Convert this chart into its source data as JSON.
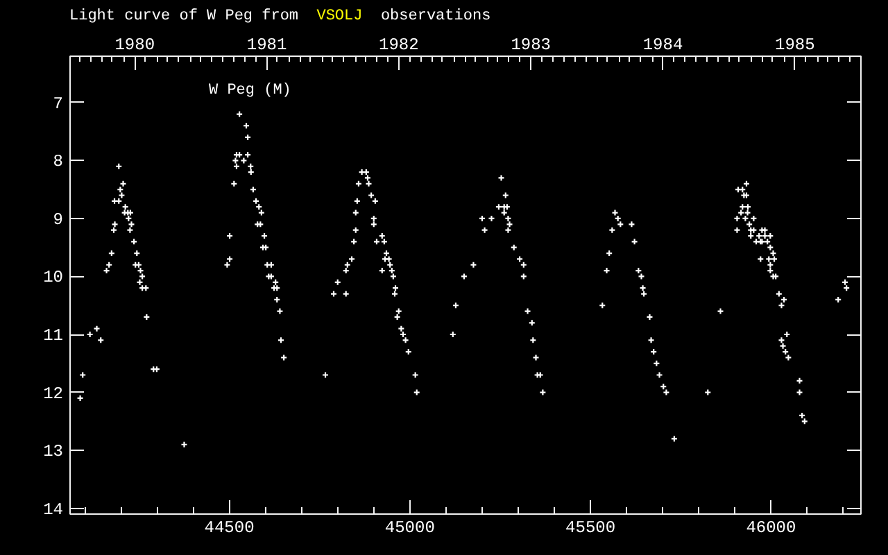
{
  "chart_data": {
    "type": "scatter",
    "title": "Light curve of W Peg from VSOLJ observations",
    "series": [
      {
        "name": "W Peg (M)",
        "color": "#ffffff",
        "x": [
          44087,
          44094,
          44114,
          44133,
          44144,
          44160,
          44167,
          44174,
          44180,
          44182,
          44183,
          44194,
          44194,
          44198,
          44202,
          44206,
          44210,
          44212,
          44219,
          44221,
          44225,
          44226,
          44229,
          44236,
          44240,
          44244,
          44249,
          44252,
          44254,
          44259,
          44259,
          44269,
          44271,
          44290,
          44299,
          44375,
          44494,
          44501,
          44501,
          44513,
          44517,
          44520,
          44520,
          44528,
          44528,
          44540,
          44547,
          44551,
          44551,
          44559,
          44560,
          44566,
          44574,
          44578,
          44582,
          44586,
          44589,
          44593,
          44597,
          44601,
          44605,
          44609,
          44616,
          44616,
          44624,
          44628,
          44632,
          44632,
          44640,
          44643,
          44651,
          44766,
          44789,
          44800,
          44823,
          44823,
          44827,
          44839,
          44845,
          44850,
          44850,
          44854,
          44858,
          44867,
          44879,
          44883,
          44886,
          44893,
          44900,
          44900,
          44904,
          44908,
          44923,
          44923,
          44929,
          44931,
          44935,
          44942,
          44945,
          44950,
          44954,
          44958,
          44960,
          44965,
          44969,
          44976,
          44981,
          44988,
          44996,
          45015,
          45019,
          45119,
          45127,
          45150,
          45176,
          45200,
          45207,
          45226,
          45246,
          45253,
          45261,
          45261,
          45265,
          45269,
          45272,
          45272,
          45276,
          45288,
          45304,
          45315,
          45315,
          45326,
          45338,
          45341,
          45349,
          45353,
          45361,
          45368,
          45533,
          45545,
          45552,
          45560,
          45568,
          45576,
          45583,
          45614,
          45622,
          45633,
          45641,
          45645,
          45648,
          45664,
          45668,
          45675,
          45683,
          45691,
          45702,
          45710,
          45732,
          45825,
          45860,
          45906,
          45906,
          45909,
          45917,
          45921,
          45921,
          45925,
          45929,
          45932,
          45932,
          45935,
          45936,
          45940,
          45944,
          45944,
          45952,
          45952,
          45959,
          45967,
          45971,
          45971,
          45975,
          45975,
          45983,
          45983,
          45990,
          45994,
          45998,
          45998,
          45998,
          45998,
          46006,
          46006,
          46009,
          46013,
          46022,
          46029,
          46029,
          46033,
          46036,
          46040,
          46044,
          46048,
          46079,
          46079,
          46086,
          46093,
          46186,
          46205,
          46209
        ],
        "values": [
          12.1,
          11.7,
          11.0,
          10.9,
          11.1,
          9.9,
          9.8,
          9.6,
          9.2,
          8.7,
          9.1,
          8.7,
          8.1,
          8.5,
          8.6,
          8.4,
          8.9,
          8.8,
          8.9,
          9.0,
          9.2,
          8.9,
          9.1,
          9.4,
          9.8,
          9.6,
          9.8,
          10.1,
          9.9,
          10.0,
          10.2,
          10.2,
          10.7,
          11.6,
          11.6,
          12.9,
          9.8,
          9.3,
          9.7,
          8.4,
          8.0,
          7.9,
          8.1,
          7.2,
          7.9,
          8.0,
          7.4,
          7.6,
          7.9,
          8.1,
          8.2,
          8.5,
          8.7,
          9.1,
          8.8,
          9.1,
          8.9,
          9.5,
          9.3,
          9.5,
          9.8,
          10.0,
          9.8,
          10.0,
          10.2,
          10.1,
          10.2,
          10.4,
          10.6,
          11.1,
          11.4,
          11.7,
          10.3,
          10.1,
          9.9,
          10.3,
          9.8,
          9.7,
          9.4,
          8.9,
          9.2,
          8.7,
          8.4,
          8.2,
          8.2,
          8.3,
          8.4,
          8.6,
          9.0,
          9.1,
          8.7,
          9.4,
          9.3,
          9.9,
          9.4,
          9.7,
          9.6,
          9.7,
          9.8,
          9.9,
          10.0,
          10.3,
          10.2,
          10.7,
          10.6,
          10.9,
          11.0,
          11.1,
          11.3,
          11.7,
          12.0,
          11.0,
          10.5,
          10.0,
          9.8,
          9.0,
          9.2,
          9.0,
          8.8,
          8.3,
          8.8,
          8.9,
          8.6,
          8.8,
          9.0,
          9.2,
          9.1,
          9.5,
          9.7,
          9.8,
          10.0,
          10.6,
          10.8,
          11.1,
          11.4,
          11.7,
          11.7,
          12.0,
          10.5,
          9.9,
          9.6,
          9.2,
          8.9,
          9.0,
          9.1,
          9.1,
          9.4,
          9.9,
          10.0,
          10.2,
          10.3,
          10.7,
          11.1,
          11.3,
          11.5,
          11.7,
          11.9,
          12.0,
          12.8,
          12.0,
          10.6,
          9.0,
          9.2,
          8.5,
          8.9,
          8.5,
          8.8,
          8.6,
          9.0,
          8.4,
          8.6,
          8.9,
          8.8,
          9.1,
          9.2,
          9.3,
          9.0,
          9.2,
          9.4,
          9.3,
          9.4,
          9.7,
          9.2,
          9.4,
          9.2,
          9.3,
          9.4,
          9.7,
          9.3,
          9.5,
          9.8,
          9.9,
          9.6,
          10.0,
          9.7,
          10.0,
          10.3,
          10.5,
          11.1,
          11.2,
          10.4,
          11.3,
          11.0,
          11.4,
          11.8,
          12.0,
          12.4,
          12.5,
          10.4,
          10.1,
          10.2
        ]
      }
    ],
    "marker": "cross",
    "legend": "top left",
    "xlim": [
      44059,
      46249
    ],
    "xticks": [
      {
        "value": 44100,
        "label": null
      },
      {
        "value": 44200,
        "label": null
      },
      {
        "value": 44300,
        "label": null
      },
      {
        "value": 44400,
        "label": null
      },
      44500,
      {
        "value": 44600,
        "label": null
      },
      {
        "value": 44700,
        "label": null
      },
      {
        "value": 44800,
        "label": null
      },
      {
        "value": 44900,
        "label": null
      },
      45000,
      {
        "value": 45100,
        "label": null
      },
      {
        "value": 45200,
        "label": null
      },
      {
        "value": 45300,
        "label": null
      },
      {
        "value": 45400,
        "label": null
      },
      45500,
      {
        "value": 45600,
        "label": null
      },
      {
        "value": 45700,
        "label": null
      },
      {
        "value": 45800,
        "label": null
      },
      {
        "value": 45900,
        "label": null
      },
      46000,
      {
        "value": 46100,
        "label": null
      },
      {
        "value": 46200,
        "label": null
      }
    ],
    "ylim": [
      14.1,
      6.2
    ],
    "yticks": [
      7,
      8,
      9,
      10,
      11,
      12,
      13,
      14
    ],
    "x2lim": [
      1979.51,
      1985.5
    ],
    "x2ticks": [
      {
        "value": 1979.58,
        "label": null
      },
      {
        "value": 1979.67,
        "label": null
      },
      {
        "value": 1979.75,
        "label": null
      },
      {
        "value": 1979.83,
        "label": null
      },
      {
        "value": 1979.92,
        "label": null
      },
      1980,
      {
        "value": 1980.08,
        "label": null
      },
      {
        "value": 1980.17,
        "label": null
      },
      {
        "value": 1980.25,
        "label": null
      },
      {
        "value": 1980.33,
        "label": null
      },
      {
        "value": 1980.42,
        "label": null
      },
      {
        "value": 1980.5,
        "label": null
      },
      {
        "value": 1980.58,
        "label": null
      },
      {
        "value": 1980.67,
        "label": null
      },
      {
        "value": 1980.75,
        "label": null
      },
      {
        "value": 1980.83,
        "label": null
      },
      {
        "value": 1980.92,
        "label": null
      },
      1981,
      {
        "value": 1981.08,
        "label": null
      },
      {
        "value": 1981.17,
        "label": null
      },
      {
        "value": 1981.25,
        "label": null
      },
      {
        "value": 1981.33,
        "label": null
      },
      {
        "value": 1981.42,
        "label": null
      },
      {
        "value": 1981.5,
        "label": null
      },
      {
        "value": 1981.58,
        "label": null
      },
      {
        "value": 1981.67,
        "label": null
      },
      {
        "value": 1981.75,
        "label": null
      },
      {
        "value": 1981.83,
        "label": null
      },
      {
        "value": 1981.92,
        "label": null
      },
      1982,
      {
        "value": 1982.08,
        "label": null
      },
      {
        "value": 1982.17,
        "label": null
      },
      {
        "value": 1982.25,
        "label": null
      },
      {
        "value": 1982.33,
        "label": null
      },
      {
        "value": 1982.42,
        "label": null
      },
      {
        "value": 1982.5,
        "label": null
      },
      {
        "value": 1982.58,
        "label": null
      },
      {
        "value": 1982.67,
        "label": null
      },
      {
        "value": 1982.75,
        "label": null
      },
      {
        "value": 1982.83,
        "label": null
      },
      {
        "value": 1982.92,
        "label": null
      },
      1983,
      {
        "value": 1983.08,
        "label": null
      },
      {
        "value": 1983.17,
        "label": null
      },
      {
        "value": 1983.25,
        "label": null
      },
      {
        "value": 1983.33,
        "label": null
      },
      {
        "value": 1983.42,
        "label": null
      },
      {
        "value": 1983.5,
        "label": null
      },
      {
        "value": 1983.58,
        "label": null
      },
      {
        "value": 1983.67,
        "label": null
      },
      {
        "value": 1983.75,
        "label": null
      },
      {
        "value": 1983.83,
        "label": null
      },
      {
        "value": 1983.92,
        "label": null
      },
      1984,
      {
        "value": 1984.08,
        "label": null
      },
      {
        "value": 1984.17,
        "label": null
      },
      {
        "value": 1984.25,
        "label": null
      },
      {
        "value": 1984.33,
        "label": null
      },
      {
        "value": 1984.42,
        "label": null
      },
      {
        "value": 1984.5,
        "label": null
      },
      {
        "value": 1984.58,
        "label": null
      },
      {
        "value": 1984.67,
        "label": null
      },
      {
        "value": 1984.75,
        "label": null
      },
      {
        "value": 1984.83,
        "label": null
      },
      {
        "value": 1984.92,
        "label": null
      },
      1985,
      {
        "value": 1985.08,
        "label": null
      },
      {
        "value": 1985.17,
        "label": null
      },
      {
        "value": 1985.25,
        "label": null
      },
      {
        "value": 1985.33,
        "label": null
      },
      {
        "value": 1985.42,
        "label": null
      }
    ]
  }
}
